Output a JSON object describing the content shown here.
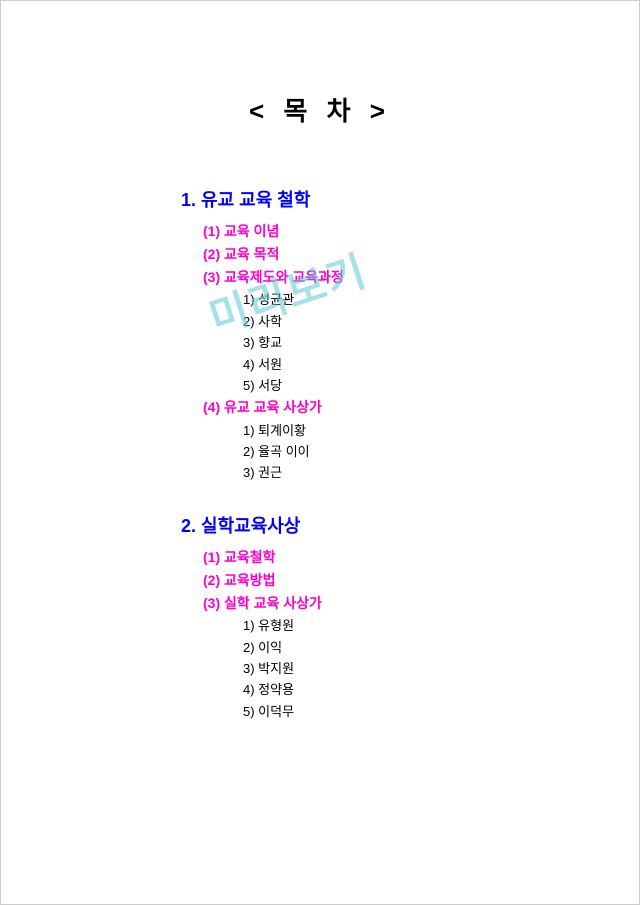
{
  "colors": {
    "title": "#000000",
    "section": "#0000ff",
    "sub": "#ff00cc",
    "subsub": "#000000",
    "watermark": "#5ec9d6",
    "border": "#cccccc",
    "background": "#ffffff"
  },
  "title": "< 목 차 >",
  "watermark": "미리보기",
  "sections": [
    {
      "head": "1. 유교 교육 철학",
      "subs": [
        {
          "label": "(1) 교육 이념",
          "items": []
        },
        {
          "label": "(2) 교육 목적",
          "items": []
        },
        {
          "label": "(3) 교육제도와 교육과정",
          "items": [
            "1) 성균관",
            "2) 사학",
            "3) 향교",
            "4) 서원",
            "5) 서당"
          ]
        },
        {
          "label": "(4) 유교 교육 사상가",
          "items": [
            "1) 퇴계이황",
            "2) 율곡 이이",
            "3) 권근"
          ]
        }
      ]
    },
    {
      "head": "2. 실학교육사상",
      "subs": [
        {
          "label": "(1) 교육철학",
          "items": []
        },
        {
          "label": "(2) 교육방법",
          "items": []
        },
        {
          "label": "(3) 실학 교육 사상가",
          "items": [
            "1) 유형원",
            "2) 이익",
            "3) 박지원",
            "4) 정약용",
            "5) 이덕무"
          ]
        }
      ]
    }
  ]
}
